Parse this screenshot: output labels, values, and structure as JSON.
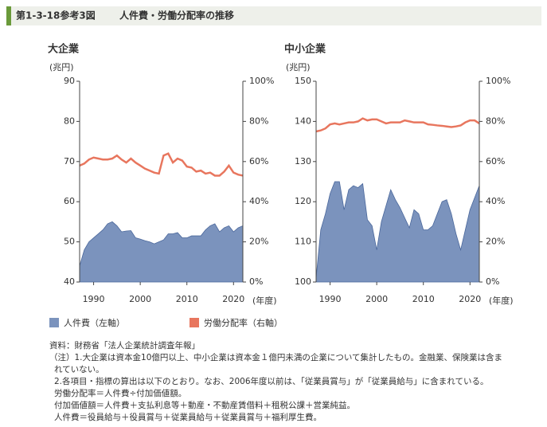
{
  "header": {
    "figure_no": "第1-3-18参考3図",
    "title": "人件費・労働分配率の推移"
  },
  "chart_data": [
    {
      "type": "area",
      "title": "大企業",
      "ylabel": "(兆円)",
      "xlabel": "(年度)",
      "x": [
        1987,
        1988,
        1989,
        1990,
        1991,
        1992,
        1993,
        1994,
        1995,
        1996,
        1997,
        1998,
        1999,
        2000,
        2001,
        2002,
        2003,
        2004,
        2005,
        2006,
        2007,
        2008,
        2009,
        2010,
        2011,
        2012,
        2013,
        2014,
        2015,
        2016,
        2017,
        2018,
        2019,
        2020,
        2021,
        2022
      ],
      "xlim": [
        1987,
        2022
      ],
      "xticks": [
        1990,
        2000,
        2010,
        2020
      ],
      "ylim": [
        40,
        90
      ],
      "yticks": [
        40,
        50,
        60,
        70,
        80,
        90
      ],
      "y2lim": [
        0,
        100
      ],
      "y2ticks": [
        {
          "value": 0,
          "label": "0%"
        },
        {
          "value": 20,
          "label": "20%"
        },
        {
          "value": 40,
          "label": "40%"
        },
        {
          "value": 60,
          "label": "60%"
        },
        {
          "value": 80,
          "label": "80%"
        },
        {
          "value": 100,
          "label": "100%"
        }
      ],
      "series": [
        {
          "name": "人件費（左軸）",
          "type": "area",
          "color": "#7b93bd",
          "values": [
            44,
            48,
            50,
            51,
            52,
            53,
            54.5,
            55,
            54,
            52.5,
            52.7,
            52.8,
            51,
            50.7,
            50.3,
            50,
            49.5,
            50,
            50.5,
            52,
            52,
            52.3,
            51,
            51,
            51.5,
            51.5,
            51.5,
            53,
            54,
            54.5,
            52.5,
            53.5,
            54,
            52.5,
            53.5,
            54
          ]
        },
        {
          "name": "労働分配率（右軸）",
          "type": "line",
          "axis": "y2",
          "color": "#e8765e",
          "values": [
            58,
            59,
            61,
            62,
            61.5,
            61,
            61,
            61.5,
            63,
            61,
            59.5,
            61.5,
            59.5,
            58,
            56.5,
            55.5,
            54.5,
            54,
            63,
            64,
            59.5,
            61.5,
            60.5,
            57.5,
            57,
            55,
            55.5,
            54,
            54.5,
            53,
            53,
            55,
            58,
            54.5,
            53.5,
            53
          ]
        }
      ]
    },
    {
      "type": "area",
      "title": "中小企業",
      "ylabel": "(兆円)",
      "xlabel": "(年度)",
      "x": [
        1987,
        1988,
        1989,
        1990,
        1991,
        1992,
        1993,
        1994,
        1995,
        1996,
        1997,
        1998,
        1999,
        2000,
        2001,
        2002,
        2003,
        2004,
        2005,
        2006,
        2007,
        2008,
        2009,
        2010,
        2011,
        2012,
        2013,
        2014,
        2015,
        2016,
        2017,
        2018,
        2019,
        2020,
        2021,
        2022
      ],
      "xlim": [
        1987,
        2022
      ],
      "xticks": [
        1990,
        2000,
        2010,
        2020
      ],
      "ylim": [
        100,
        150
      ],
      "yticks": [
        100,
        110,
        120,
        130,
        140,
        150
      ],
      "y2lim": [
        0,
        100
      ],
      "y2ticks": [
        {
          "value": 0,
          "label": "0%"
        },
        {
          "value": 20,
          "label": "20%"
        },
        {
          "value": 40,
          "label": "40%"
        },
        {
          "value": 60,
          "label": "60%"
        },
        {
          "value": 80,
          "label": "80%"
        },
        {
          "value": 100,
          "label": "100%"
        }
      ],
      "series": [
        {
          "name": "人件費（左軸）",
          "type": "area",
          "color": "#7b93bd",
          "values": [
            101,
            113,
            117,
            122,
            125,
            125,
            118,
            123,
            124,
            123.5,
            124.5,
            115.5,
            114,
            108,
            115,
            119,
            123,
            120.5,
            118.5,
            116,
            113.5,
            118,
            117,
            113,
            113,
            114,
            117,
            120,
            120.5,
            117,
            112,
            108,
            113,
            118,
            121,
            124
          ]
        },
        {
          "name": "労働分配率（右軸）",
          "type": "line",
          "axis": "y2",
          "color": "#e8765e",
          "values": [
            75,
            75.5,
            76.5,
            78.5,
            79,
            78.5,
            79,
            79.5,
            79.5,
            80,
            81.5,
            80.5,
            81,
            81,
            80,
            79,
            79.5,
            79.5,
            79.5,
            80.5,
            80,
            79.5,
            79.5,
            79.5,
            78.5,
            78.3,
            78,
            77.8,
            77.5,
            77.2,
            77.5,
            78,
            79.5,
            80.5,
            80.5,
            79
          ]
        }
      ]
    }
  ],
  "notes": [
    "資料：財務省「法人企業統計調査年報」",
    "（注）1.大企業は資本金10億円以上、中小企業は資本金１億円未満の企業について集計したもの。金融業、保険業は含ま",
    "れていない。",
    "2.各項目・指標の算出は以下のとおり。なお、2006年度以前は、「従業員賞与」が「従業員給与」に含まれている。",
    "労働分配率＝人件費÷付加価値額。",
    "付加価値額＝人件費＋支払利息等＋動産・不動産賃借料＋租税公課＋営業純益。",
    "人件費＝役員給与＋役員賞与＋従業員給与＋従業員賞与＋福利厚生費。"
  ]
}
